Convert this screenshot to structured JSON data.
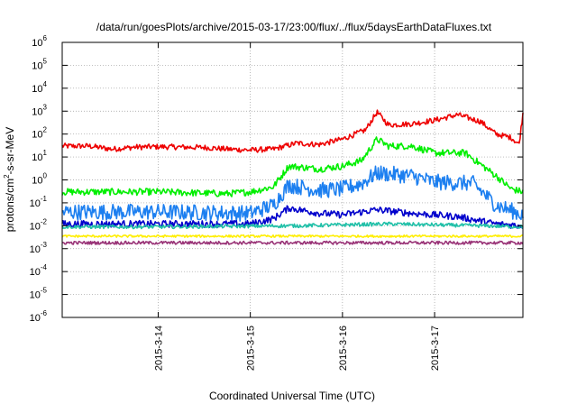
{
  "chart_data": {
    "type": "line",
    "title": "/data/run/goesPlots/archive/2015-03-17/23:00/flux/../flux/5daysEarthDataFluxes.txt",
    "xlabel": "Coordinated Universal Time (UTC)",
    "ylabel": {
      "base": "protons/cm",
      "exp": "2",
      "rest": "-s-sr-MeV"
    },
    "yscale": "log",
    "ylim_exp": [
      -6,
      6
    ],
    "y_ticks": [
      {
        "base": "10",
        "exp": "-6"
      },
      {
        "base": "10",
        "exp": "-5"
      },
      {
        "base": "10",
        "exp": "-4"
      },
      {
        "base": "10",
        "exp": "-3"
      },
      {
        "base": "10",
        "exp": "-2"
      },
      {
        "base": "10",
        "exp": "-1"
      },
      {
        "base": "10",
        "exp": "0"
      },
      {
        "base": "10",
        "exp": "1"
      },
      {
        "base": "10",
        "exp": "2"
      },
      {
        "base": "10",
        "exp": "3"
      },
      {
        "base": "10",
        "exp": "4"
      },
      {
        "base": "10",
        "exp": "5"
      },
      {
        "base": "10",
        "exp": "6"
      }
    ],
    "xlim": [
      "2015-03-12 23:00",
      "2015-03-17 23:00"
    ],
    "x_ticks": [
      "2015-3-14",
      "2015-3-15",
      "2015-3-16",
      "2015-3-17"
    ],
    "grid": true,
    "series": [
      {
        "color": "#ee0000",
        "noise": 0.12,
        "points": [
          [
            "2015-03-12 23:00",
            30
          ],
          [
            "2015-03-13 06:00",
            30
          ],
          [
            "2015-03-13 12:00",
            22
          ],
          [
            "2015-03-13 18:00",
            27
          ],
          [
            "2015-03-14 00:00",
            28
          ],
          [
            "2015-03-14 12:00",
            26
          ],
          [
            "2015-03-14 18:00",
            22
          ],
          [
            "2015-03-15 00:00",
            20
          ],
          [
            "2015-03-15 06:00",
            22
          ],
          [
            "2015-03-15 12:00",
            40
          ],
          [
            "2015-03-15 18:00",
            35
          ],
          [
            "2015-03-16 00:00",
            60
          ],
          [
            "2015-03-16 06:00",
            150
          ],
          [
            "2015-03-16 09:00",
            900
          ],
          [
            "2015-03-16 12:00",
            250
          ],
          [
            "2015-03-16 18:00",
            280
          ],
          [
            "2015-03-17 00:00",
            400
          ],
          [
            "2015-03-17 06:00",
            700
          ],
          [
            "2015-03-17 12:00",
            350
          ],
          [
            "2015-03-17 16:00",
            100
          ],
          [
            "2015-03-17 20:00",
            70
          ],
          [
            "2015-03-17 22:00",
            35
          ],
          [
            "2015-03-17 23:00",
            800
          ]
        ]
      },
      {
        "color": "#00ee00",
        "noise": 0.15,
        "points": [
          [
            "2015-03-12 23:00",
            0.3
          ],
          [
            "2015-03-14 00:00",
            0.3
          ],
          [
            "2015-03-14 18:00",
            0.25
          ],
          [
            "2015-03-15 00:00",
            0.3
          ],
          [
            "2015-03-15 06:00",
            0.5
          ],
          [
            "2015-03-15 10:00",
            4
          ],
          [
            "2015-03-15 18:00",
            3
          ],
          [
            "2015-03-16 00:00",
            4
          ],
          [
            "2015-03-16 05:00",
            7
          ],
          [
            "2015-03-16 09:00",
            60
          ],
          [
            "2015-03-16 12:00",
            30
          ],
          [
            "2015-03-16 18:00",
            30
          ],
          [
            "2015-03-17 00:00",
            15
          ],
          [
            "2015-03-17 08:00",
            15
          ],
          [
            "2015-03-17 16:00",
            1.5
          ],
          [
            "2015-03-17 20:00",
            0.4
          ],
          [
            "2015-03-17 23:00",
            0.3
          ]
        ]
      },
      {
        "color": "#1c7ff0",
        "noise": 0.35,
        "points": [
          [
            "2015-03-12 23:00",
            0.04
          ],
          [
            "2015-03-14 00:00",
            0.04
          ],
          [
            "2015-03-15 00:00",
            0.035
          ],
          [
            "2015-03-15 06:00",
            0.08
          ],
          [
            "2015-03-15 10:00",
            0.6
          ],
          [
            "2015-03-15 18:00",
            0.35
          ],
          [
            "2015-03-16 00:00",
            0.4
          ],
          [
            "2015-03-16 05:00",
            0.7
          ],
          [
            "2015-03-16 09:00",
            2
          ],
          [
            "2015-03-16 18:00",
            1.5
          ],
          [
            "2015-03-17 00:00",
            0.8
          ],
          [
            "2015-03-17 10:00",
            0.7
          ],
          [
            "2015-03-17 16:00",
            0.08
          ],
          [
            "2015-03-17 23:00",
            0.03
          ]
        ]
      },
      {
        "color": "#0000cc",
        "noise": 0.15,
        "points": [
          [
            "2015-03-12 23:00",
            0.012
          ],
          [
            "2015-03-15 00:00",
            0.012
          ],
          [
            "2015-03-15 06:00",
            0.02
          ],
          [
            "2015-03-15 10:00",
            0.06
          ],
          [
            "2015-03-15 18:00",
            0.035
          ],
          [
            "2015-03-16 00:00",
            0.03
          ],
          [
            "2015-03-16 09:00",
            0.05
          ],
          [
            "2015-03-16 18:00",
            0.035
          ],
          [
            "2015-03-17 06:00",
            0.025
          ],
          [
            "2015-03-17 16:00",
            0.012
          ],
          [
            "2015-03-17 23:00",
            0.01
          ]
        ]
      },
      {
        "color": "#20c0a8",
        "noise": 0.08,
        "points": [
          [
            "2015-03-12 23:00",
            0.009
          ],
          [
            "2015-03-14 00:00",
            0.009
          ],
          [
            "2015-03-15 12:00",
            0.01
          ],
          [
            "2015-03-16 12:00",
            0.012
          ],
          [
            "2015-03-17 12:00",
            0.01
          ],
          [
            "2015-03-17 23:00",
            0.009
          ]
        ]
      },
      {
        "color": "#ffee00",
        "noise": 0.05,
        "points": [
          [
            "2015-03-12 23:00",
            0.0035
          ],
          [
            "2015-03-17 23:00",
            0.0035
          ]
        ]
      },
      {
        "color": "#993377",
        "noise": 0.07,
        "points": [
          [
            "2015-03-12 23:00",
            0.0018
          ],
          [
            "2015-03-17 23:00",
            0.0018
          ]
        ]
      }
    ]
  }
}
